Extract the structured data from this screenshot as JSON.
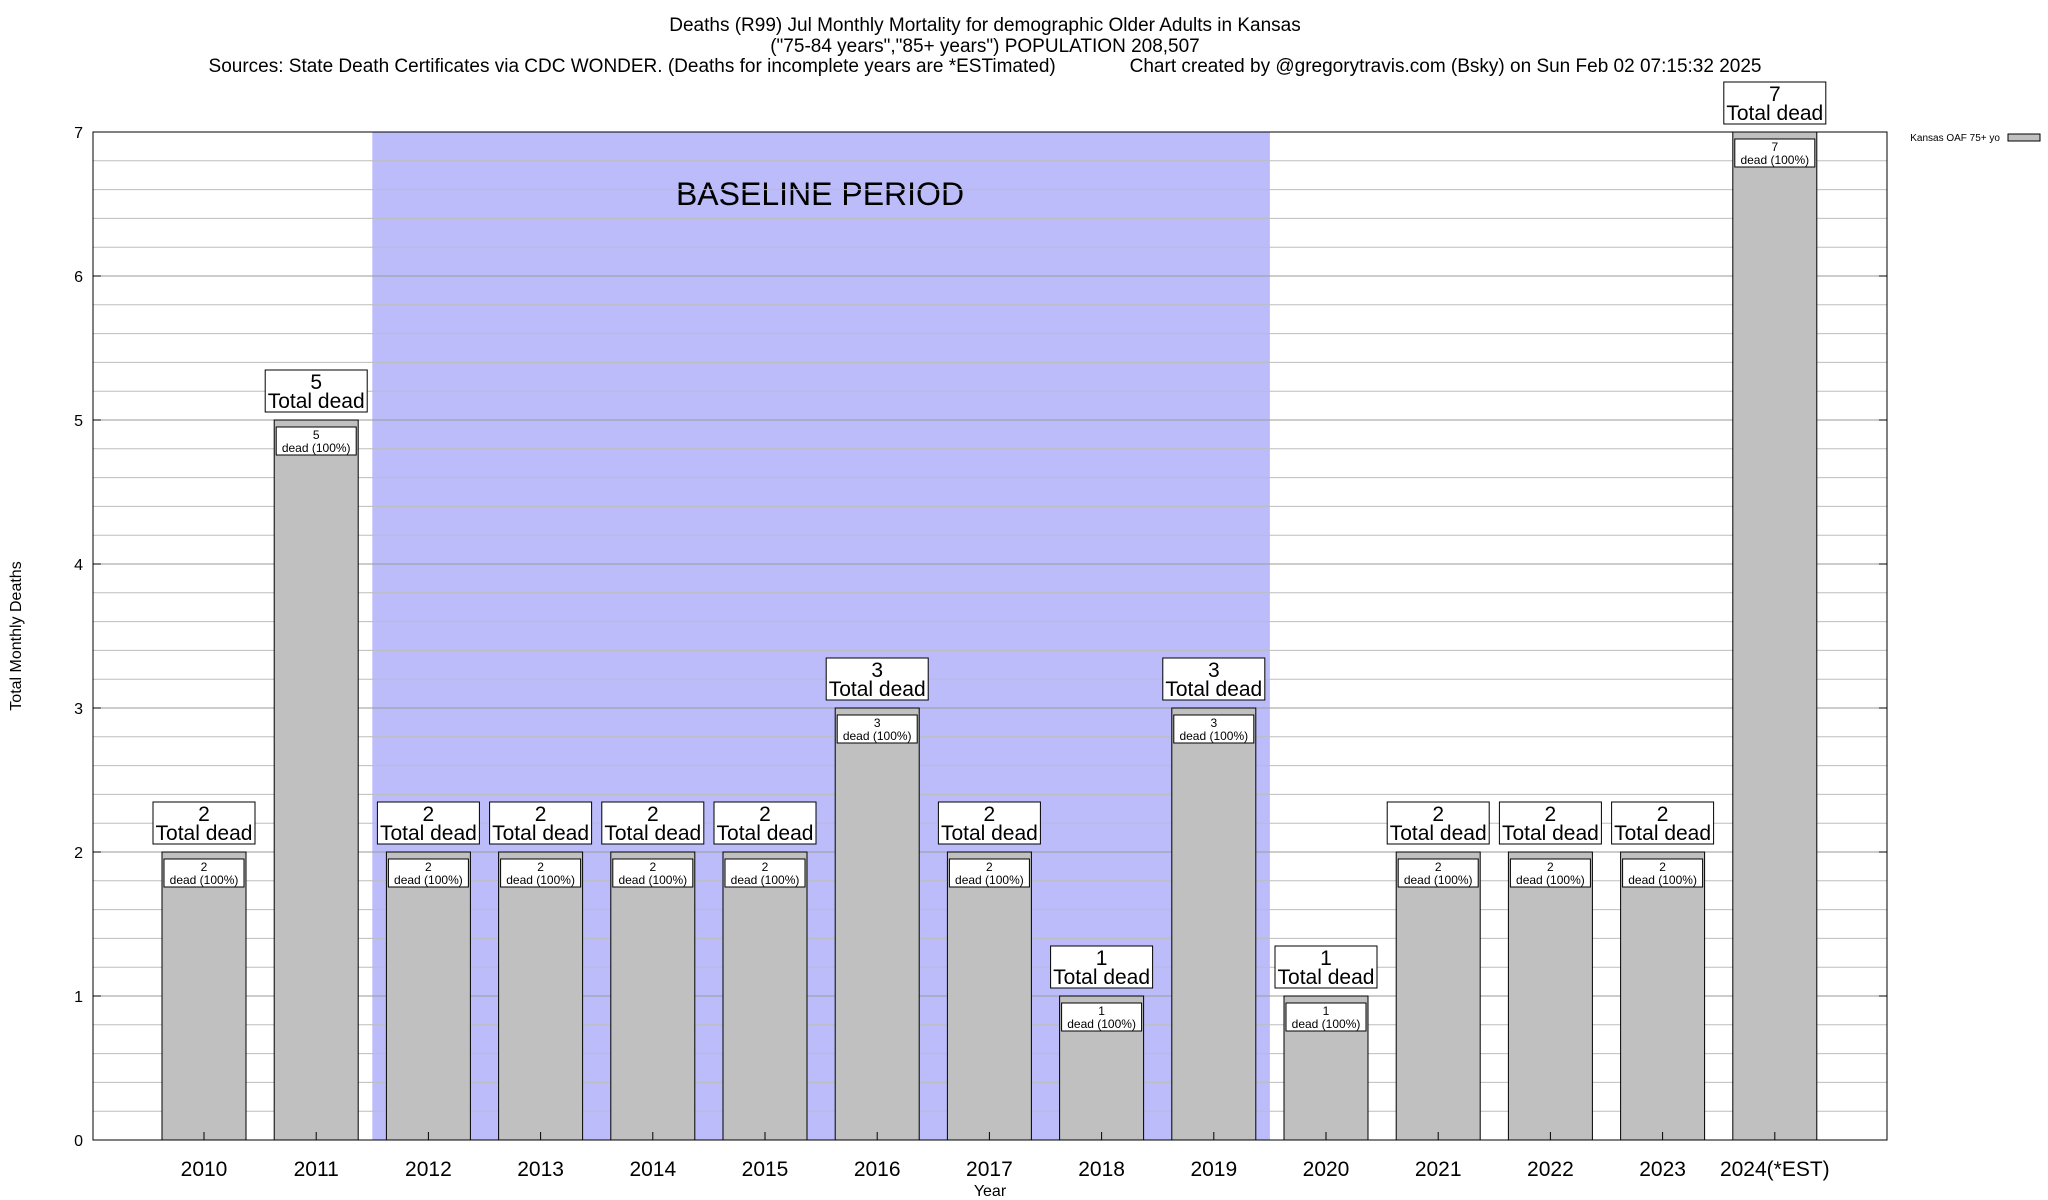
{
  "chart_data": {
    "type": "bar",
    "title_lines": [
      "Deaths (R99) Jul Monthly Mortality for demographic Older Adults in Kansas",
      "(\"75-84 years\",\"85+ years\") POPULATION 208,507",
      "Sources: State Death Certificates via CDC WONDER. (Deaths for incomplete years are *ESTimated)              Chart created by @gregorytravis.com (Bsky) on Sun Feb 02 07:15:32 2025"
    ],
    "xlabel": "Year",
    "ylabel": "Total Monthly Deaths",
    "ylim": [
      0,
      7
    ],
    "y_ticks": [
      0,
      1,
      2,
      3,
      4,
      5,
      6,
      7
    ],
    "categories": [
      "2010",
      "2011",
      "2012",
      "2013",
      "2014",
      "2015",
      "2016",
      "2017",
      "2018",
      "2019",
      "2020",
      "2021",
      "2022",
      "2023",
      "2024(*EST)"
    ],
    "series": [
      {
        "name": "Kansas OAF 75+ yo",
        "values": [
          2,
          5,
          2,
          2,
          2,
          2,
          3,
          2,
          1,
          3,
          1,
          2,
          2,
          2,
          7
        ],
        "color": "#c0c0c0"
      }
    ],
    "bar_total_label": "Total dead",
    "bar_inner_label": "dead (100%)",
    "baseline_period": {
      "label": "BASELINE PERIOD",
      "start_category": "2012",
      "end_category": "2019",
      "color": "#bcbcfb"
    },
    "grid": true,
    "legend_position": "top-right"
  }
}
